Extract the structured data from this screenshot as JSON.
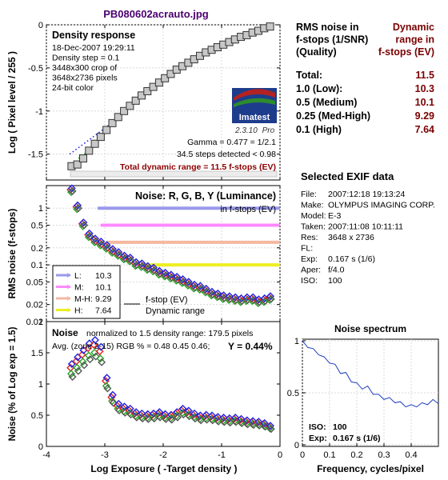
{
  "file_title": "PB080602acrauto.jpg",
  "density_panel": {
    "title": "Density response",
    "info": [
      "18-Dec-2007 19:29:11",
      "Density step = 0.1",
      "3448x300 crop of",
      "3648x2736 pixels",
      "24-bit color"
    ],
    "logo_text": "Imatest",
    "version": "2.3.10",
    "version_suffix": "Pro",
    "gamma_text": "Gamma = 0.477 = 1/2.1",
    "steps_text": "34.5 steps detected < 0.98",
    "dr_text": "Total dynamic range = 11.5 f-stops (EV)",
    "ylabel": "Log ( Pixel level / 255 )"
  },
  "noise_panel": {
    "title": "Noise: R, G, B, Y (Luminance)",
    "subtitle": "in f-stops (EV)",
    "ylabel": "RMS noise (f-stops)",
    "fstop_label": "f-stop (EV)",
    "dr_label": "Dynamic range"
  },
  "noise_pct_panel": {
    "title": "Noise",
    "norm_text": "normalized to 1.5 density range: 179.5 pixels",
    "avg_text": "Avg. (zone 2-15) RGB % = 0.48  0.45  0.46;",
    "y_text": "Y = 0.44%",
    "ylabel": "Noise (% of Log exp = 1.5)",
    "xlabel": "Log Exposure ( -Target density )"
  },
  "rms_table": {
    "header_left": [
      "RMS noise in",
      "f-stops (1/SNR)",
      "(Quality)"
    ],
    "header_right": [
      "Dynamic",
      "range in",
      "f-stops (EV)"
    ],
    "rows": [
      {
        "label": "Total:",
        "value": "11.5"
      },
      {
        "label": "1.0    (Low):",
        "value": "10.3"
      },
      {
        "label": "0.5    (Medium)",
        "value": "10.1"
      },
      {
        "label": "0.25  (Med-High)",
        "value": "9.29"
      },
      {
        "label": "0.1    (High)",
        "value": "7.64"
      }
    ]
  },
  "exif": {
    "title": "Selected EXIF data",
    "rows": [
      {
        "k": "File:",
        "v": "2007:12:18 19:13:24"
      },
      {
        "k": "Make:",
        "v": "OLYMPUS IMAGING CORP."
      },
      {
        "k": "Model:",
        "v": "E-3"
      },
      {
        "k": "Taken:",
        "v": "2007:11:08 10:11:11"
      },
      {
        "k": "Res:",
        "v": "3648 x 2736"
      },
      {
        "k": "FL:",
        "v": ""
      },
      {
        "k": "Exp:",
        "v": "0.167 s  (1/6)"
      },
      {
        "k": "Aper:",
        "v": "f/4.0"
      },
      {
        "k": "ISO:",
        "v": "100"
      }
    ]
  },
  "spectrum_info": {
    "iso_label": "ISO:",
    "iso_value": "100",
    "exp_label": "Exp:",
    "exp_value": "0.167 s  (1/6)"
  },
  "colors": {
    "low": "#9999ee",
    "medium": "#ff88ff",
    "med_high": "#f4b8a0",
    "high": "#eeee22",
    "red": "#dd2222",
    "green": "#22aa22",
    "blue": "#2222dd",
    "lum": "#555555",
    "dr_bar": "#8b0000"
  },
  "chart_data": [
    {
      "type": "scatter",
      "title": "Density response",
      "xlabel": "",
      "ylabel": "Log ( Pixel level / 255 )",
      "xlim": [
        -4,
        0
      ],
      "ylim": [
        -1.8,
        0
      ],
      "xticks": [
        -4,
        -3,
        -2,
        -1,
        0
      ],
      "yticks": [
        0,
        -0.5,
        -1,
        -1.5
      ],
      "grid": true,
      "series": [
        {
          "x": [
            -3.57,
            -3.47,
            -3.37,
            -3.27,
            -3.17,
            -3.07,
            -2.97,
            -2.87,
            -2.77,
            -2.67,
            -2.57,
            -2.47,
            -2.37,
            -2.27,
            -2.17,
            -2.07,
            -1.97,
            -1.87,
            -1.77,
            -1.67,
            -1.57,
            -1.47,
            -1.37,
            -1.27,
            -1.17,
            -1.07,
            -0.97,
            -0.87,
            -0.77,
            -0.67,
            -0.57,
            -0.47,
            -0.37,
            -0.27,
            -0.17
          ],
          "y": [
            -1.64,
            -1.62,
            -1.55,
            -1.46,
            -1.38,
            -1.3,
            -1.22,
            -1.14,
            -1.07,
            -1.0,
            -0.94,
            -0.88,
            -0.82,
            -0.77,
            -0.72,
            -0.67,
            -0.62,
            -0.57,
            -0.52,
            -0.48,
            -0.44,
            -0.4,
            -0.36,
            -0.32,
            -0.29,
            -0.26,
            -0.23,
            -0.2,
            -0.17,
            -0.14,
            -0.12,
            -0.09,
            -0.07,
            -0.04,
            -0.02
          ]
        }
      ],
      "fit_line": {
        "x": [
          -3.6,
          -3.2,
          -2.8
        ],
        "y": [
          -1.5,
          -1.3,
          -1.1
        ]
      }
    },
    {
      "type": "scatter",
      "title": "Noise: R, G, B, Y (Luminance)",
      "ylabel": "RMS noise (f-stops)",
      "xlim": [
        -4,
        0
      ],
      "ylim": [
        0.01,
        2.5
      ],
      "yscale": "log",
      "yticks": [
        1,
        0.5,
        0.2,
        0.1,
        0.05,
        0.02,
        0.01
      ],
      "xticks": [
        -4,
        -3,
        -2,
        -1,
        0
      ],
      "grid": true,
      "legend": "bottom-left",
      "dr_lines": [
        {
          "name": "L:",
          "noise": 1.0,
          "dr": "10.3",
          "x_start": -3.1
        },
        {
          "name": "M:",
          "noise": 0.5,
          "dr": "10.1",
          "x_start": -3.05
        },
        {
          "name": "M-H:",
          "noise": 0.25,
          "dr": "9.29",
          "x_start": -2.95
        },
        {
          "name": "H:",
          "noise": 0.1,
          "dr": "7.64",
          "x_start": -2.3
        }
      ],
      "series": [
        {
          "x": [
            -3.57,
            -3.47,
            -3.37,
            -3.27,
            -3.17,
            -3.07,
            -2.97,
            -2.87,
            -2.77,
            -2.67,
            -2.57,
            -2.47,
            -2.37,
            -2.27,
            -2.17,
            -2.07,
            -1.97,
            -1.87,
            -1.77,
            -1.67,
            -1.57,
            -1.47,
            -1.37,
            -1.27,
            -1.17,
            -1.07,
            -0.97,
            -0.87,
            -0.77,
            -0.67,
            -0.57,
            -0.47,
            -0.37,
            -0.27,
            -0.17
          ],
          "y": [
            2.0,
            1.0,
            0.5,
            0.32,
            0.26,
            0.23,
            0.2,
            0.17,
            0.15,
            0.13,
            0.12,
            0.1,
            0.095,
            0.085,
            0.08,
            0.07,
            0.065,
            0.06,
            0.055,
            0.05,
            0.045,
            0.04,
            0.038,
            0.034,
            0.03,
            0.028,
            0.026,
            0.025,
            0.024,
            0.023,
            0.024,
            0.024,
            0.022,
            0.023,
            0.025
          ]
        }
      ]
    },
    {
      "type": "scatter",
      "title": "Noise",
      "ylabel": "Noise (% of Log exp = 1.5)",
      "xlabel": "Log Exposure ( -Target density )",
      "xlim": [
        -4,
        0
      ],
      "ylim": [
        0,
        2
      ],
      "xticks": [
        -4,
        -3,
        -2,
        -1,
        0
      ],
      "yticks": [
        0,
        0.5,
        1,
        1.5,
        2
      ],
      "tick_labels_x": [
        "-4",
        "-3",
        "-2",
        "-1",
        "0"
      ],
      "tick_labels_y": [
        "0",
        "0.5",
        "1",
        "1.5",
        "2"
      ],
      "series": [
        {
          "x": [
            -3.57,
            -3.47,
            -3.37,
            -3.27,
            -3.17,
            -3.07,
            -2.97,
            -2.87,
            -2.77,
            -2.67,
            -2.57,
            -2.47,
            -2.37,
            -2.27,
            -2.17,
            -2.07,
            -1.97,
            -1.87,
            -1.77,
            -1.67,
            -1.57,
            -1.47,
            -1.37,
            -1.27,
            -1.17,
            -1.07,
            -0.97,
            -0.87,
            -0.77,
            -0.67,
            -0.57,
            -0.47,
            -0.37,
            -0.27,
            -0.17
          ],
          "y": [
            1.2,
            1.3,
            1.4,
            1.5,
            1.55,
            1.45,
            1.0,
            0.75,
            0.62,
            0.58,
            0.55,
            0.5,
            0.48,
            0.47,
            0.48,
            0.5,
            0.47,
            0.46,
            0.5,
            0.55,
            0.52,
            0.48,
            0.45,
            0.46,
            0.45,
            0.43,
            0.42,
            0.41,
            0.42,
            0.4,
            0.38,
            0.37,
            0.36,
            0.34,
            0.3
          ]
        }
      ]
    },
    {
      "type": "line",
      "title": "Noise spectrum",
      "xlabel": "Frequency, cycles/pixel",
      "xlim": [
        0,
        0.5
      ],
      "ylim": [
        0,
        1
      ],
      "xticks": [
        0,
        0.1,
        0.2,
        0.3,
        0.4
      ],
      "yticks": [
        0,
        0.5,
        1
      ],
      "tick_labels_x": [
        "0",
        "0.1",
        "0.2",
        "0.3",
        "0.4"
      ],
      "tick_labels_y": [
        "0",
        "0.5",
        "1"
      ],
      "series": [
        {
          "x": [
            0,
            0.02,
            0.04,
            0.06,
            0.08,
            0.1,
            0.12,
            0.14,
            0.16,
            0.18,
            0.2,
            0.22,
            0.24,
            0.26,
            0.28,
            0.3,
            0.32,
            0.34,
            0.36,
            0.38,
            0.4,
            0.42,
            0.44,
            0.46,
            0.48,
            0.5
          ],
          "y": [
            1.0,
            0.95,
            0.91,
            0.88,
            0.83,
            0.8,
            0.76,
            0.7,
            0.68,
            0.62,
            0.58,
            0.55,
            0.55,
            0.5,
            0.47,
            0.45,
            0.44,
            0.42,
            0.4,
            0.38,
            0.37,
            0.38,
            0.39,
            0.4,
            0.42,
            0.41
          ]
        }
      ]
    }
  ]
}
